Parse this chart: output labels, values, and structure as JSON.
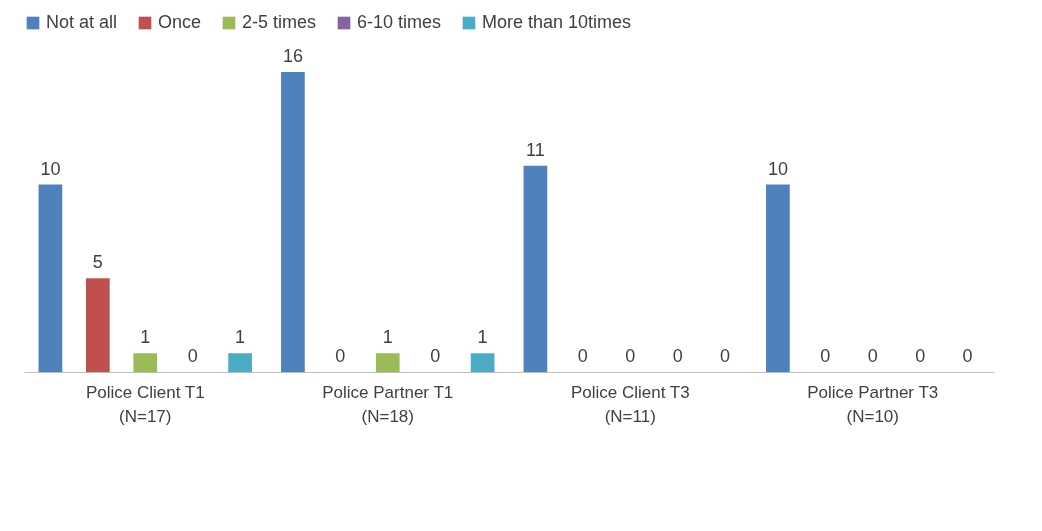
{
  "chart_data": {
    "type": "bar",
    "categories": [
      "Police Client T1\n(N=17)",
      "Police Partner T1\n(N=18)",
      "Police Client T3\n(N=11)",
      "Police Partner T3\n(N=10)"
    ],
    "series": [
      {
        "name": "Not at all",
        "color": "#4f81bd",
        "values": [
          10,
          16,
          11,
          10
        ]
      },
      {
        "name": "Once",
        "color": "#c0504d",
        "values": [
          5,
          0,
          0,
          0
        ]
      },
      {
        "name": "2-5 times",
        "color": "#9bbb59",
        "values": [
          1,
          1,
          0,
          0
        ]
      },
      {
        "name": "6-10 times",
        "color": "#8064a2",
        "values": [
          0,
          0,
          0,
          0
        ]
      },
      {
        "name": "More than 10times",
        "color": "#4bacc6",
        "values": [
          1,
          1,
          0,
          0
        ]
      }
    ],
    "data_labels": true,
    "legend": "top"
  }
}
